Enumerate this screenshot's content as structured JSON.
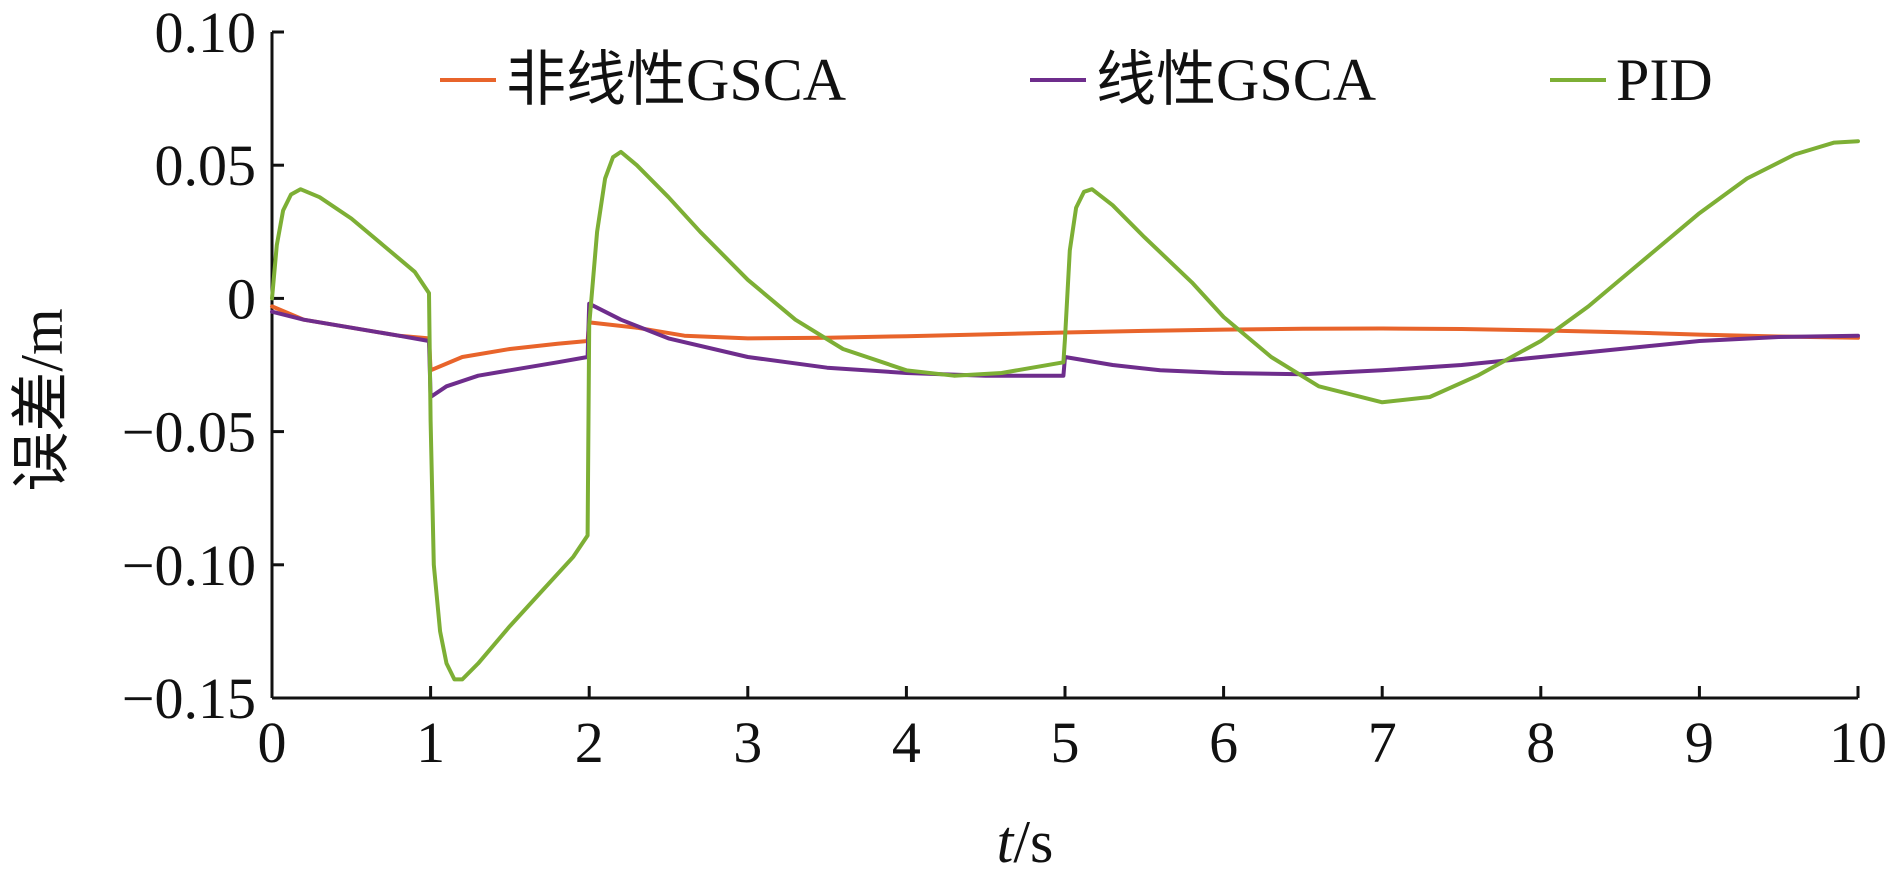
{
  "chart_data": {
    "type": "line",
    "title": "",
    "xlabel_italic": "t",
    "xlabel_unit": "/s",
    "ylabel": "误差/m",
    "xlim": [
      0,
      10
    ],
    "ylim": [
      -0.15,
      0.1
    ],
    "x_ticks": [
      0,
      1,
      2,
      3,
      4,
      5,
      6,
      7,
      8,
      9,
      10
    ],
    "x_tick_labels": [
      "0",
      "1",
      "2",
      "3",
      "4",
      "5",
      "6",
      "7",
      "8",
      "9",
      "10"
    ],
    "y_ticks": [
      0.1,
      0.05,
      0,
      -0.05,
      -0.1,
      -0.15
    ],
    "y_tick_labels": [
      "0.10",
      "0.05",
      "0",
      "−0.05",
      "−0.10",
      "−0.15"
    ],
    "legend_position": "top",
    "grid": false,
    "series": [
      {
        "name": "非线性GSCA",
        "color": "#E8642B",
        "points": [
          [
            0,
            -0.003
          ],
          [
            0.2,
            -0.008
          ],
          [
            0.5,
            -0.011
          ],
          [
            0.8,
            -0.014
          ],
          [
            0.99,
            -0.015
          ],
          [
            1.0,
            -0.027
          ],
          [
            1.2,
            -0.022
          ],
          [
            1.5,
            -0.019
          ],
          [
            1.8,
            -0.017
          ],
          [
            1.99,
            -0.016
          ],
          [
            2.0,
            -0.009
          ],
          [
            2.3,
            -0.011
          ],
          [
            2.6,
            -0.014
          ],
          [
            3.0,
            -0.015
          ],
          [
            3.5,
            -0.0148
          ],
          [
            4.0,
            -0.0142
          ],
          [
            4.5,
            -0.0135
          ],
          [
            5.0,
            -0.0128
          ],
          [
            5.5,
            -0.0122
          ],
          [
            6.0,
            -0.0117
          ],
          [
            6.5,
            -0.0114
          ],
          [
            7.0,
            -0.0113
          ],
          [
            7.5,
            -0.0115
          ],
          [
            8.0,
            -0.012
          ],
          [
            8.5,
            -0.0127
          ],
          [
            9.0,
            -0.0136
          ],
          [
            9.5,
            -0.0143
          ],
          [
            10.0,
            -0.0148
          ]
        ]
      },
      {
        "name": "线性GSCA",
        "color": "#6E2D8C",
        "points": [
          [
            0,
            -0.005
          ],
          [
            0.2,
            -0.008
          ],
          [
            0.5,
            -0.011
          ],
          [
            0.8,
            -0.014
          ],
          [
            0.99,
            -0.016
          ],
          [
            1.0,
            -0.037
          ],
          [
            1.1,
            -0.033
          ],
          [
            1.3,
            -0.029
          ],
          [
            1.5,
            -0.027
          ],
          [
            1.8,
            -0.024
          ],
          [
            1.99,
            -0.022
          ],
          [
            2.0,
            -0.002
          ],
          [
            2.2,
            -0.008
          ],
          [
            2.5,
            -0.015
          ],
          [
            3.0,
            -0.022
          ],
          [
            3.5,
            -0.026
          ],
          [
            4.0,
            -0.028
          ],
          [
            4.5,
            -0.029
          ],
          [
            4.99,
            -0.029
          ],
          [
            5.0,
            -0.022
          ],
          [
            5.3,
            -0.025
          ],
          [
            5.6,
            -0.027
          ],
          [
            6.0,
            -0.028
          ],
          [
            6.5,
            -0.0285
          ],
          [
            7.0,
            -0.027
          ],
          [
            7.5,
            -0.025
          ],
          [
            8.0,
            -0.022
          ],
          [
            8.5,
            -0.019
          ],
          [
            9.0,
            -0.016
          ],
          [
            9.5,
            -0.0145
          ],
          [
            10.0,
            -0.014
          ]
        ]
      },
      {
        "name": "PID",
        "color": "#7DAF35",
        "points": [
          [
            0,
            0.0
          ],
          [
            0.03,
            0.02
          ],
          [
            0.07,
            0.033
          ],
          [
            0.12,
            0.039
          ],
          [
            0.18,
            0.041
          ],
          [
            0.3,
            0.038
          ],
          [
            0.5,
            0.03
          ],
          [
            0.7,
            0.02
          ],
          [
            0.9,
            0.01
          ],
          [
            0.99,
            0.002
          ],
          [
            1.0,
            -0.046
          ],
          [
            1.02,
            -0.1
          ],
          [
            1.06,
            -0.125
          ],
          [
            1.1,
            -0.137
          ],
          [
            1.15,
            -0.143
          ],
          [
            1.2,
            -0.143
          ],
          [
            1.3,
            -0.137
          ],
          [
            1.5,
            -0.123
          ],
          [
            1.7,
            -0.11
          ],
          [
            1.9,
            -0.097
          ],
          [
            1.99,
            -0.089
          ],
          [
            2.0,
            -0.01
          ],
          [
            2.05,
            0.025
          ],
          [
            2.1,
            0.045
          ],
          [
            2.15,
            0.053
          ],
          [
            2.2,
            0.055
          ],
          [
            2.3,
            0.05
          ],
          [
            2.5,
            0.038
          ],
          [
            2.7,
            0.025
          ],
          [
            3.0,
            0.007
          ],
          [
            3.3,
            -0.008
          ],
          [
            3.6,
            -0.019
          ],
          [
            4.0,
            -0.027
          ],
          [
            4.3,
            -0.029
          ],
          [
            4.6,
            -0.028
          ],
          [
            4.99,
            -0.024
          ],
          [
            5.0,
            -0.015
          ],
          [
            5.03,
            0.018
          ],
          [
            5.07,
            0.034
          ],
          [
            5.12,
            0.04
          ],
          [
            5.17,
            0.041
          ],
          [
            5.3,
            0.035
          ],
          [
            5.5,
            0.023
          ],
          [
            5.8,
            0.006
          ],
          [
            6.0,
            -0.007
          ],
          [
            6.3,
            -0.022
          ],
          [
            6.6,
            -0.033
          ],
          [
            7.0,
            -0.039
          ],
          [
            7.3,
            -0.037
          ],
          [
            7.6,
            -0.029
          ],
          [
            8.0,
            -0.016
          ],
          [
            8.3,
            -0.003
          ],
          [
            8.6,
            0.012
          ],
          [
            9.0,
            0.032
          ],
          [
            9.3,
            0.045
          ],
          [
            9.6,
            0.054
          ],
          [
            9.85,
            0.0585
          ],
          [
            10.0,
            0.059
          ]
        ]
      }
    ]
  }
}
